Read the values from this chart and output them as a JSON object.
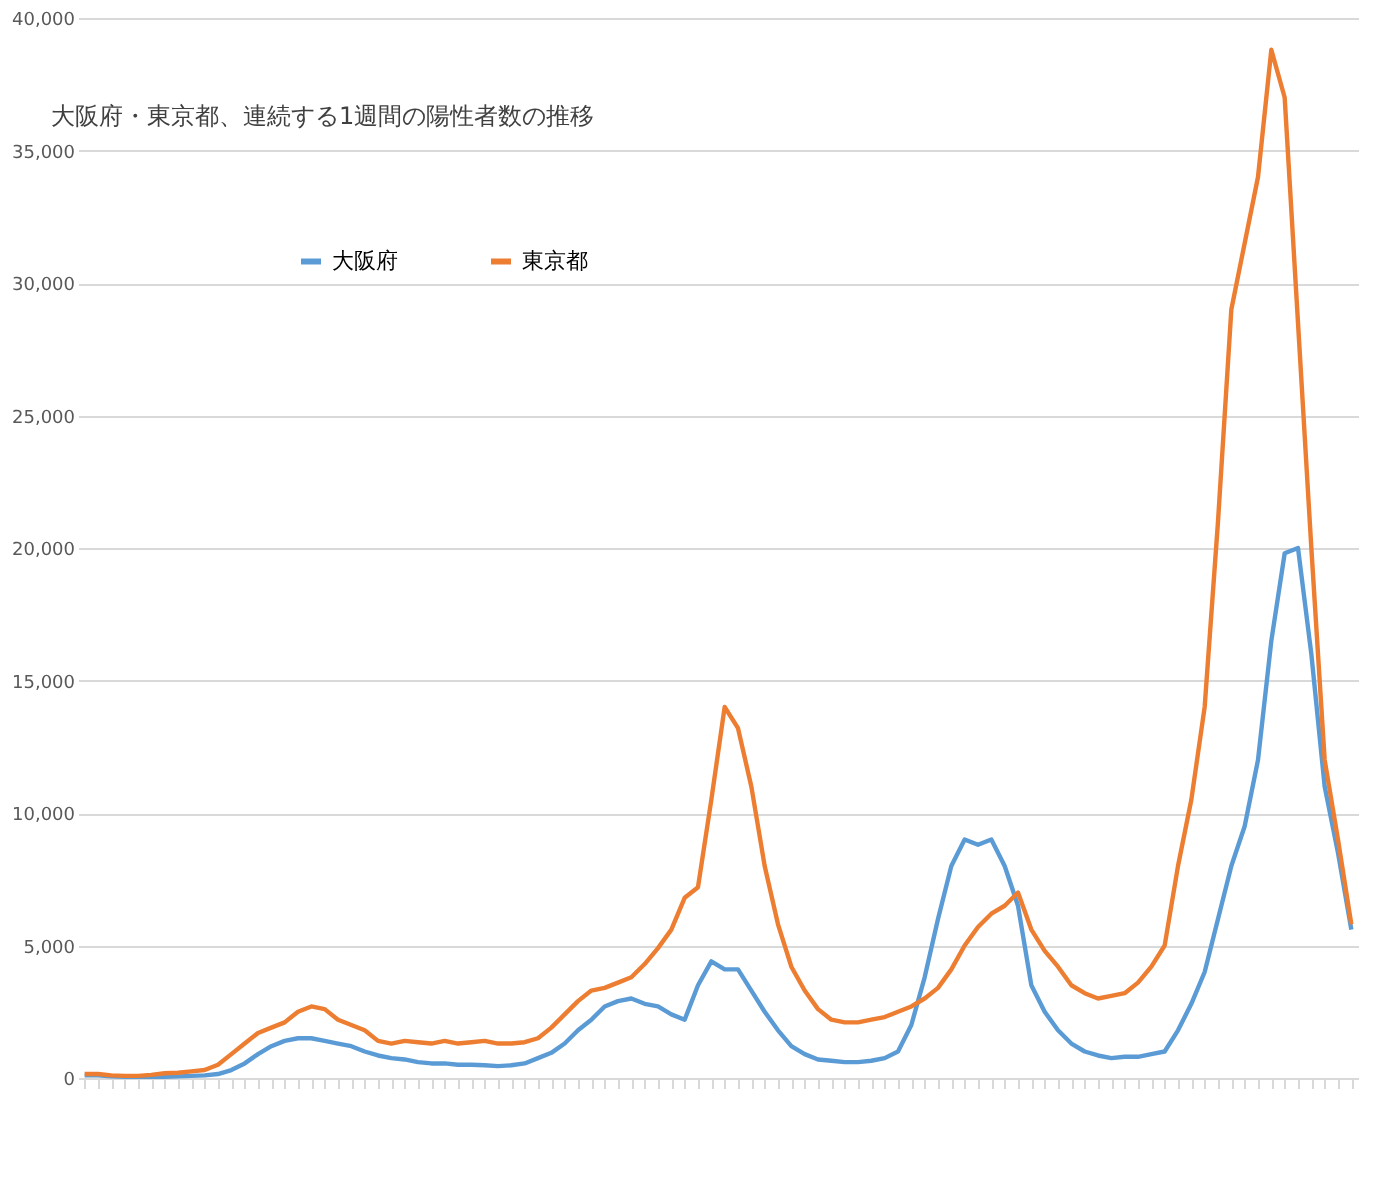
{
  "chart_data": {
    "type": "line",
    "title": "大阪府・東京都、連続する1週間の陽性者数の推移",
    "categories": [
      null,
      null,
      null,
      null,
      null,
      null,
      null,
      null,
      null,
      null,
      null,
      null,
      null,
      null,
      null,
      null,
      null,
      null,
      null,
      null,
      null,
      null,
      null,
      null,
      null,
      null,
      null,
      null,
      null,
      null,
      null,
      null,
      null,
      null,
      null,
      null,
      null,
      null,
      null,
      null,
      null,
      null,
      null,
      null,
      null,
      null,
      null,
      null,
      null,
      null,
      null,
      null,
      null,
      null,
      null,
      null,
      null,
      null,
      null,
      null,
      null,
      null,
      null,
      null,
      null,
      null,
      null,
      null,
      null,
      null,
      null,
      null,
      null,
      null,
      null,
      null,
      null,
      null,
      null,
      null,
      null,
      null,
      null,
      null,
      null,
      null,
      null,
      null,
      null,
      null,
      null,
      null,
      null,
      null,
      null,
      null
    ],
    "series": [
      {
        "name": "大阪府",
        "color": "#5b9bd5",
        "values": [
          100,
          100,
          60,
          50,
          50,
          50,
          50,
          60,
          80,
          100,
          150,
          300,
          550,
          900,
          1200,
          1400,
          1500,
          1500,
          1400,
          1300,
          1200,
          1000,
          850,
          750,
          700,
          600,
          550,
          550,
          500,
          500,
          480,
          450,
          480,
          550,
          750,
          950,
          1300,
          1800,
          2200,
          2700,
          2900,
          3000,
          2800,
          2700,
          2400,
          2200,
          3500,
          4400,
          4100,
          4100,
          3300,
          2500,
          1800,
          1200,
          900,
          700,
          650,
          600,
          600,
          650,
          750,
          1000,
          2000,
          3800,
          6000,
          8000,
          9000,
          8800,
          9000,
          8000,
          6500,
          3500,
          2500,
          1800,
          1300,
          1000,
          850,
          750,
          800,
          800,
          900,
          1000,
          1800,
          2800,
          4000,
          6000,
          8000,
          9500,
          12000,
          16500,
          19800,
          20000,
          16000,
          11000,
          8500,
          5600
        ]
      },
      {
        "name": "東京都",
        "color": "#ed7d31",
        "values": [
          150,
          150,
          100,
          80,
          80,
          120,
          180,
          200,
          250,
          300,
          500,
          900,
          1300,
          1700,
          1900,
          2100,
          2500,
          2700,
          2600,
          2200,
          2000,
          1800,
          1400,
          1300,
          1400,
          1350,
          1300,
          1400,
          1300,
          1350,
          1400,
          1300,
          1300,
          1350,
          1500,
          1900,
          2400,
          2900,
          3300,
          3400,
          3600,
          3800,
          4300,
          4900,
          5600,
          6800,
          7200,
          10500,
          14000,
          13200,
          11000,
          8000,
          5800,
          4200,
          3300,
          2600,
          2200,
          2100,
          2100,
          2200,
          2300,
          2500,
          2700,
          3000,
          3400,
          4100,
          5000,
          5700,
          6200,
          6500,
          7000,
          5600,
          4800,
          4200,
          3500,
          3200,
          3000,
          3100,
          3200,
          3600,
          4200,
          5000,
          8000,
          10500,
          14000,
          21000,
          29000,
          31500,
          34000,
          38800,
          37000,
          28500,
          20000,
          12000,
          9000,
          5800
        ]
      }
    ],
    "ylim": [
      0,
      40000
    ],
    "yticks": [
      {
        "value": 0,
        "label": "0"
      },
      {
        "value": 5000,
        "label": "5,000"
      },
      {
        "value": 10000,
        "label": "10,000"
      },
      {
        "value": 15000,
        "label": "15,000"
      },
      {
        "value": 20000,
        "label": "20,000"
      },
      {
        "value": 25000,
        "label": "25,000"
      },
      {
        "value": 30000,
        "label": "30,000"
      },
      {
        "value": 35000,
        "label": "35,000"
      },
      {
        "value": 40000,
        "label": "40,000"
      }
    ],
    "grid": "y",
    "legend": "top left",
    "tick_labels": "y",
    "marker": "none",
    "line_style": "solid"
  }
}
